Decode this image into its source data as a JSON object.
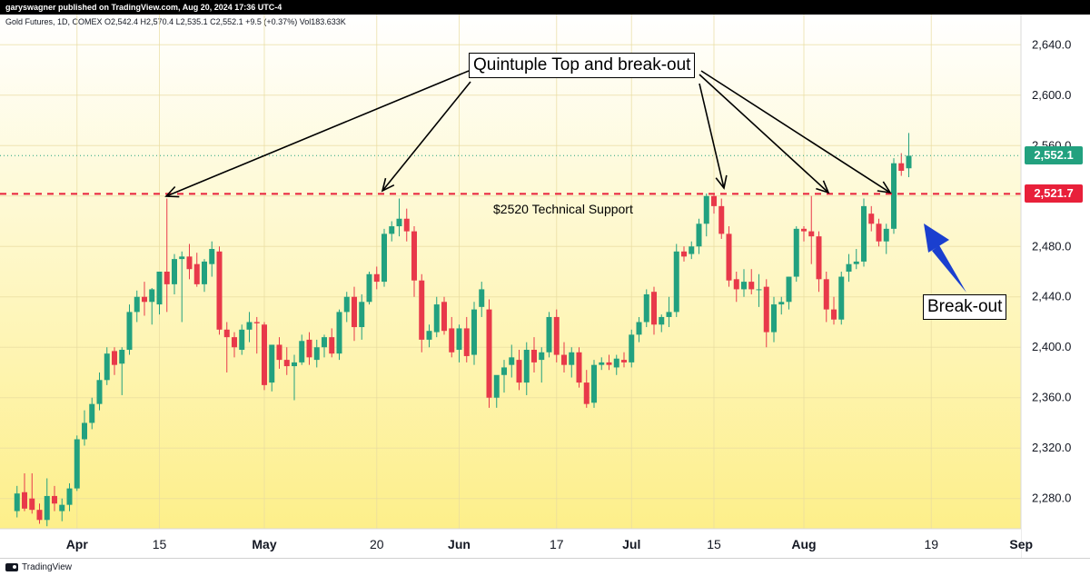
{
  "header": {
    "publisher": "garyswagner published on TradingView.com, Aug 20, 2024 17:36 UTC-4",
    "symbol_info": "Gold Futures, 1D, COMEX  O2,542.4  H2,570.4  L2,535.1  C2,552.1  +9.5 (+0.37%)  Vol183.633K"
  },
  "footer": {
    "logo_text": "TradingView"
  },
  "colors": {
    "up": "#22a17f",
    "down": "#e8394a",
    "support": "#e8203a",
    "arrow_blue": "#1a3fcf",
    "bg_top": "#ffffff",
    "bg_bottom": "#fdef8a"
  },
  "annotations": {
    "title": "Quintuple Top and break-out",
    "support": "$2520 Technical Support",
    "breakout": "Break-out"
  },
  "price_tags": {
    "last": "2,552.1",
    "support": "2,521.7"
  },
  "chart_data": {
    "type": "candlestick",
    "y_ticks": [
      "2,640.0",
      "2,600.0",
      "2,560.0",
      "2,520.0",
      "2,480.0",
      "2,440.0",
      "2,400.0",
      "2,360.0",
      "2,320.0",
      "2,280.0"
    ],
    "y_tick_values": [
      2640,
      2600,
      2560,
      2520,
      2480,
      2440,
      2400,
      2360,
      2320,
      2280
    ],
    "ylim": [
      2256,
      2664
    ],
    "x_ticks": [
      "Apr",
      "15",
      "May",
      "20",
      "Jun",
      "17",
      "Jul",
      "15",
      "Aug",
      "19",
      "Sep"
    ],
    "x_tick_index": [
      9,
      20,
      34,
      49,
      60,
      73,
      83,
      94,
      106,
      123,
      135
    ],
    "x_count": 137,
    "support_level": 2521.7,
    "last_price": 2552.1,
    "candles": [
      {
        "i": 1,
        "o": 2270,
        "h": 2290,
        "l": 2265,
        "c": 2284
      },
      {
        "i": 2,
        "o": 2285,
        "h": 2300,
        "l": 2270,
        "c": 2272
      },
      {
        "i": 3,
        "o": 2280,
        "h": 2300,
        "l": 2268,
        "c": 2271
      },
      {
        "i": 4,
        "o": 2271,
        "h": 2276,
        "l": 2260,
        "c": 2263
      },
      {
        "i": 5,
        "o": 2263,
        "h": 2296,
        "l": 2258,
        "c": 2282
      },
      {
        "i": 6,
        "o": 2282,
        "h": 2290,
        "l": 2270,
        "c": 2276
      },
      {
        "i": 7,
        "o": 2270,
        "h": 2280,
        "l": 2262,
        "c": 2275
      },
      {
        "i": 8,
        "o": 2275,
        "h": 2292,
        "l": 2270,
        "c": 2288
      },
      {
        "i": 9,
        "o": 2288,
        "h": 2330,
        "l": 2286,
        "c": 2327
      },
      {
        "i": 10,
        "o": 2327,
        "h": 2350,
        "l": 2322,
        "c": 2340
      },
      {
        "i": 11,
        "o": 2340,
        "h": 2360,
        "l": 2335,
        "c": 2355
      },
      {
        "i": 12,
        "o": 2355,
        "h": 2380,
        "l": 2350,
        "c": 2374
      },
      {
        "i": 13,
        "o": 2374,
        "h": 2400,
        "l": 2370,
        "c": 2395
      },
      {
        "i": 14,
        "o": 2397,
        "h": 2400,
        "l": 2378,
        "c": 2386
      },
      {
        "i": 15,
        "o": 2387,
        "h": 2400,
        "l": 2362,
        "c": 2398
      },
      {
        "i": 16,
        "o": 2398,
        "h": 2434,
        "l": 2394,
        "c": 2428
      },
      {
        "i": 17,
        "o": 2428,
        "h": 2445,
        "l": 2420,
        "c": 2440
      },
      {
        "i": 18,
        "o": 2440,
        "h": 2452,
        "l": 2425,
        "c": 2436
      },
      {
        "i": 19,
        "o": 2436,
        "h": 2447,
        "l": 2418,
        "c": 2446
      },
      {
        "i": 20,
        "o": 2434,
        "h": 2460,
        "l": 2426,
        "c": 2460
      },
      {
        "i": 21,
        "o": 2460,
        "h": 2518,
        "l": 2428,
        "c": 2450
      },
      {
        "i": 22,
        "o": 2450,
        "h": 2474,
        "l": 2442,
        "c": 2470
      },
      {
        "i": 23,
        "o": 2470,
        "h": 2476,
        "l": 2420,
        "c": 2472
      },
      {
        "i": 24,
        "o": 2472,
        "h": 2482,
        "l": 2454,
        "c": 2462
      },
      {
        "i": 25,
        "o": 2466,
        "h": 2475,
        "l": 2448,
        "c": 2450
      },
      {
        "i": 26,
        "o": 2450,
        "h": 2470,
        "l": 2444,
        "c": 2468
      },
      {
        "i": 27,
        "o": 2466,
        "h": 2484,
        "l": 2456,
        "c": 2478
      },
      {
        "i": 28,
        "o": 2476,
        "h": 2480,
        "l": 2410,
        "c": 2414
      },
      {
        "i": 29,
        "o": 2414,
        "h": 2420,
        "l": 2380,
        "c": 2408
      },
      {
        "i": 30,
        "o": 2408,
        "h": 2412,
        "l": 2392,
        "c": 2400
      },
      {
        "i": 31,
        "o": 2398,
        "h": 2418,
        "l": 2394,
        "c": 2414
      },
      {
        "i": 32,
        "o": 2414,
        "h": 2428,
        "l": 2404,
        "c": 2420
      },
      {
        "i": 33,
        "o": 2420,
        "h": 2424,
        "l": 2395,
        "c": 2419
      },
      {
        "i": 34,
        "o": 2418,
        "h": 2420,
        "l": 2366,
        "c": 2370
      },
      {
        "i": 35,
        "o": 2372,
        "h": 2402,
        "l": 2365,
        "c": 2402
      },
      {
        "i": 36,
        "o": 2402,
        "h": 2408,
        "l": 2383,
        "c": 2390
      },
      {
        "i": 37,
        "o": 2390,
        "h": 2400,
        "l": 2378,
        "c": 2385
      },
      {
        "i": 38,
        "o": 2385,
        "h": 2394,
        "l": 2358,
        "c": 2388
      },
      {
        "i": 39,
        "o": 2388,
        "h": 2410,
        "l": 2386,
        "c": 2405
      },
      {
        "i": 40,
        "o": 2406,
        "h": 2412,
        "l": 2386,
        "c": 2392
      },
      {
        "i": 41,
        "o": 2390,
        "h": 2406,
        "l": 2384,
        "c": 2400
      },
      {
        "i": 42,
        "o": 2400,
        "h": 2410,
        "l": 2392,
        "c": 2408
      },
      {
        "i": 43,
        "o": 2408,
        "h": 2415,
        "l": 2392,
        "c": 2395
      },
      {
        "i": 44,
        "o": 2395,
        "h": 2430,
        "l": 2390,
        "c": 2428
      },
      {
        "i": 45,
        "o": 2428,
        "h": 2444,
        "l": 2420,
        "c": 2440
      },
      {
        "i": 46,
        "o": 2440,
        "h": 2448,
        "l": 2405,
        "c": 2416
      },
      {
        "i": 47,
        "o": 2416,
        "h": 2442,
        "l": 2406,
        "c": 2436
      },
      {
        "i": 48,
        "o": 2436,
        "h": 2460,
        "l": 2434,
        "c": 2458
      },
      {
        "i": 49,
        "o": 2458,
        "h": 2464,
        "l": 2446,
        "c": 2452
      },
      {
        "i": 50,
        "o": 2452,
        "h": 2494,
        "l": 2448,
        "c": 2490
      },
      {
        "i": 51,
        "o": 2490,
        "h": 2500,
        "l": 2484,
        "c": 2496
      },
      {
        "i": 52,
        "o": 2496,
        "h": 2518,
        "l": 2488,
        "c": 2502
      },
      {
        "i": 53,
        "o": 2502,
        "h": 2510,
        "l": 2484,
        "c": 2492
      },
      {
        "i": 54,
        "o": 2492,
        "h": 2496,
        "l": 2440,
        "c": 2453
      },
      {
        "i": 55,
        "o": 2453,
        "h": 2458,
        "l": 2396,
        "c": 2406
      },
      {
        "i": 56,
        "o": 2406,
        "h": 2418,
        "l": 2400,
        "c": 2413
      },
      {
        "i": 57,
        "o": 2412,
        "h": 2440,
        "l": 2408,
        "c": 2434
      },
      {
        "i": 58,
        "o": 2436,
        "h": 2440,
        "l": 2410,
        "c": 2413
      },
      {
        "i": 59,
        "o": 2415,
        "h": 2424,
        "l": 2392,
        "c": 2396
      },
      {
        "i": 60,
        "o": 2398,
        "h": 2418,
        "l": 2388,
        "c": 2415
      },
      {
        "i": 61,
        "o": 2415,
        "h": 2424,
        "l": 2388,
        "c": 2393
      },
      {
        "i": 62,
        "o": 2394,
        "h": 2436,
        "l": 2386,
        "c": 2430
      },
      {
        "i": 63,
        "o": 2432,
        "h": 2452,
        "l": 2424,
        "c": 2446
      },
      {
        "i": 64,
        "o": 2430,
        "h": 2438,
        "l": 2352,
        "c": 2360
      },
      {
        "i": 65,
        "o": 2360,
        "h": 2374,
        "l": 2352,
        "c": 2378
      },
      {
        "i": 66,
        "o": 2378,
        "h": 2390,
        "l": 2364,
        "c": 2384
      },
      {
        "i": 67,
        "o": 2386,
        "h": 2402,
        "l": 2376,
        "c": 2392
      },
      {
        "i": 68,
        "o": 2390,
        "h": 2398,
        "l": 2366,
        "c": 2372
      },
      {
        "i": 69,
        "o": 2372,
        "h": 2404,
        "l": 2362,
        "c": 2398
      },
      {
        "i": 70,
        "o": 2398,
        "h": 2408,
        "l": 2380,
        "c": 2388
      },
      {
        "i": 71,
        "o": 2390,
        "h": 2400,
        "l": 2372,
        "c": 2396
      },
      {
        "i": 72,
        "o": 2396,
        "h": 2428,
        "l": 2392,
        "c": 2424
      },
      {
        "i": 73,
        "o": 2424,
        "h": 2430,
        "l": 2388,
        "c": 2394
      },
      {
        "i": 74,
        "o": 2394,
        "h": 2404,
        "l": 2380,
        "c": 2386
      },
      {
        "i": 75,
        "o": 2386,
        "h": 2400,
        "l": 2376,
        "c": 2396
      },
      {
        "i": 76,
        "o": 2396,
        "h": 2400,
        "l": 2368,
        "c": 2372
      },
      {
        "i": 77,
        "o": 2372,
        "h": 2382,
        "l": 2352,
        "c": 2355
      },
      {
        "i": 78,
        "o": 2356,
        "h": 2390,
        "l": 2352,
        "c": 2386
      },
      {
        "i": 79,
        "o": 2386,
        "h": 2392,
        "l": 2382,
        "c": 2388
      },
      {
        "i": 80,
        "o": 2388,
        "h": 2394,
        "l": 2382,
        "c": 2386
      },
      {
        "i": 81,
        "o": 2384,
        "h": 2394,
        "l": 2378,
        "c": 2391
      },
      {
        "i": 82,
        "o": 2390,
        "h": 2396,
        "l": 2384,
        "c": 2388
      },
      {
        "i": 83,
        "o": 2388,
        "h": 2414,
        "l": 2384,
        "c": 2410
      },
      {
        "i": 84,
        "o": 2410,
        "h": 2424,
        "l": 2404,
        "c": 2420
      },
      {
        "i": 85,
        "o": 2420,
        "h": 2446,
        "l": 2416,
        "c": 2442
      },
      {
        "i": 86,
        "o": 2444,
        "h": 2448,
        "l": 2410,
        "c": 2418
      },
      {
        "i": 87,
        "o": 2418,
        "h": 2426,
        "l": 2412,
        "c": 2424
      },
      {
        "i": 88,
        "o": 2424,
        "h": 2440,
        "l": 2416,
        "c": 2428
      },
      {
        "i": 89,
        "o": 2428,
        "h": 2482,
        "l": 2424,
        "c": 2476
      },
      {
        "i": 90,
        "o": 2476,
        "h": 2480,
        "l": 2468,
        "c": 2472
      },
      {
        "i": 91,
        "o": 2474,
        "h": 2484,
        "l": 2470,
        "c": 2480
      },
      {
        "i": 92,
        "o": 2480,
        "h": 2502,
        "l": 2474,
        "c": 2498
      },
      {
        "i": 93,
        "o": 2498,
        "h": 2522,
        "l": 2488,
        "c": 2520
      },
      {
        "i": 94,
        "o": 2520,
        "h": 2522,
        "l": 2506,
        "c": 2512
      },
      {
        "i": 95,
        "o": 2512,
        "h": 2518,
        "l": 2486,
        "c": 2490
      },
      {
        "i": 96,
        "o": 2490,
        "h": 2496,
        "l": 2448,
        "c": 2453
      },
      {
        "i": 97,
        "o": 2454,
        "h": 2460,
        "l": 2436,
        "c": 2446
      },
      {
        "i": 98,
        "o": 2446,
        "h": 2462,
        "l": 2440,
        "c": 2452
      },
      {
        "i": 99,
        "o": 2452,
        "h": 2462,
        "l": 2442,
        "c": 2446
      },
      {
        "i": 100,
        "o": 2446,
        "h": 2458,
        "l": 2432,
        "c": 2446
      },
      {
        "i": 101,
        "o": 2448,
        "h": 2454,
        "l": 2400,
        "c": 2412
      },
      {
        "i": 102,
        "o": 2412,
        "h": 2440,
        "l": 2404,
        "c": 2434
      },
      {
        "i": 103,
        "o": 2434,
        "h": 2440,
        "l": 2426,
        "c": 2436
      },
      {
        "i": 104,
        "o": 2436,
        "h": 2456,
        "l": 2430,
        "c": 2456
      },
      {
        "i": 105,
        "o": 2456,
        "h": 2496,
        "l": 2452,
        "c": 2494
      },
      {
        "i": 106,
        "o": 2494,
        "h": 2496,
        "l": 2484,
        "c": 2492
      },
      {
        "i": 107,
        "o": 2492,
        "h": 2520,
        "l": 2466,
        "c": 2488
      },
      {
        "i": 108,
        "o": 2488,
        "h": 2492,
        "l": 2444,
        "c": 2454
      },
      {
        "i": 109,
        "o": 2454,
        "h": 2460,
        "l": 2420,
        "c": 2430
      },
      {
        "i": 110,
        "o": 2430,
        "h": 2440,
        "l": 2418,
        "c": 2422
      },
      {
        "i": 111,
        "o": 2422,
        "h": 2460,
        "l": 2418,
        "c": 2456
      },
      {
        "i": 112,
        "o": 2460,
        "h": 2474,
        "l": 2452,
        "c": 2466
      },
      {
        "i": 113,
        "o": 2466,
        "h": 2478,
        "l": 2462,
        "c": 2468
      },
      {
        "i": 114,
        "o": 2468,
        "h": 2518,
        "l": 2464,
        "c": 2512
      },
      {
        "i": 115,
        "o": 2506,
        "h": 2512,
        "l": 2492,
        "c": 2498
      },
      {
        "i": 116,
        "o": 2498,
        "h": 2502,
        "l": 2480,
        "c": 2484
      },
      {
        "i": 117,
        "o": 2484,
        "h": 2498,
        "l": 2474,
        "c": 2494
      },
      {
        "i": 118,
        "o": 2494,
        "h": 2550,
        "l": 2490,
        "c": 2546
      },
      {
        "i": 119,
        "o": 2546,
        "h": 2554,
        "l": 2536,
        "c": 2540
      },
      {
        "i": 120,
        "o": 2542,
        "h": 2570,
        "l": 2535,
        "c": 2552
      }
    ]
  }
}
